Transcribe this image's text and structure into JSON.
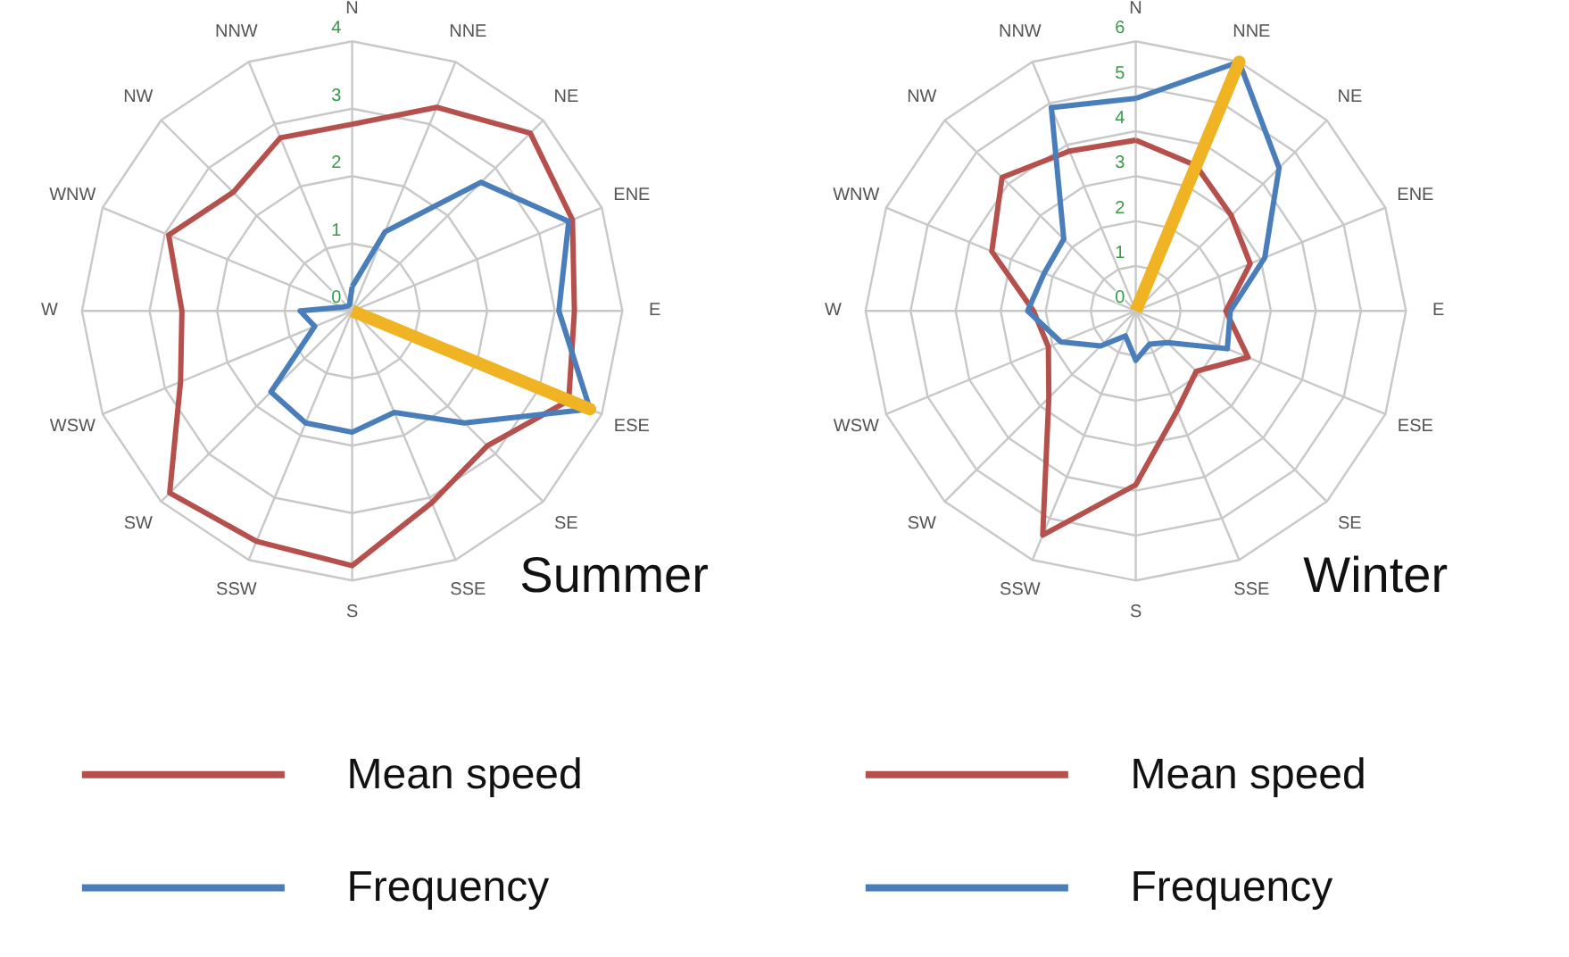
{
  "chart_data": [
    {
      "type": "radar",
      "title": "Summer",
      "categories": [
        "N",
        "NNE",
        "NE",
        "ENE",
        "E",
        "ESE",
        "SE",
        "SSE",
        "S",
        "SSW",
        "SW",
        "WSW",
        "W",
        "WNW",
        "NW",
        "NNW"
      ],
      "series": [
        {
          "name": "Mean speed",
          "color": "#b5504d",
          "values": [
            2.77,
            3.27,
            3.73,
            3.53,
            3.29,
            3.47,
            2.83,
            3.08,
            3.78,
            3.7,
            3.82,
            2.75,
            2.52,
            2.94,
            2.49,
            2.78
          ]
        },
        {
          "name": "Frequency",
          "color": "#4a7ebb",
          "values": [
            0.36,
            1.27,
            2.7,
            3.47,
            3.06,
            3.81,
            2.35,
            1.63,
            1.8,
            1.8,
            1.7,
            0.6,
            0.77,
            0.15,
            0.1,
            0.1
          ]
        },
        {
          "color": "#f0b323",
          "values": [
            0,
            0,
            0,
            0,
            0,
            3.81,
            0,
            0,
            0,
            0,
            0,
            0,
            0,
            0,
            0,
            0
          ]
        }
      ],
      "ylim": [
        0,
        4
      ],
      "yticks": [
        0,
        1,
        2,
        3,
        4
      ],
      "grid": true,
      "legend": "bottom"
    },
    {
      "type": "radar",
      "title": "Winter",
      "categories": [
        "N",
        "NNE",
        "NE",
        "ENE",
        "E",
        "ESE",
        "SE",
        "SSE",
        "S",
        "SSW",
        "SW",
        "WSW",
        "W",
        "WNW",
        "NW",
        "NNW"
      ],
      "series": [
        {
          "name": "Mean speed",
          "color": "#b5504d",
          "values": [
            3.8,
            3.5,
            3.0,
            2.75,
            2.0,
            2.7,
            1.9,
            2.4,
            3.87,
            5.4,
            2.73,
            2.1,
            2.27,
            3.46,
            4.2,
            3.85
          ]
        },
        {
          "name": "Frequency",
          "color": "#4a7ebb",
          "values": [
            4.73,
            6.0,
            4.5,
            3.1,
            2.1,
            2.2,
            1.0,
            0.8,
            1.1,
            0.6,
            1.1,
            1.8,
            2.4,
            2.2,
            2.26,
            4.9
          ]
        },
        {
          "color": "#f0b323",
          "values": [
            0,
            6.0,
            0,
            0,
            0,
            0,
            0,
            0,
            0,
            0,
            0,
            0,
            0,
            0,
            0,
            0
          ]
        }
      ],
      "ylim": [
        0,
        6
      ],
      "yticks": [
        0,
        1,
        2,
        3,
        4,
        5,
        6
      ],
      "grid": true,
      "legend": "bottom"
    }
  ]
}
